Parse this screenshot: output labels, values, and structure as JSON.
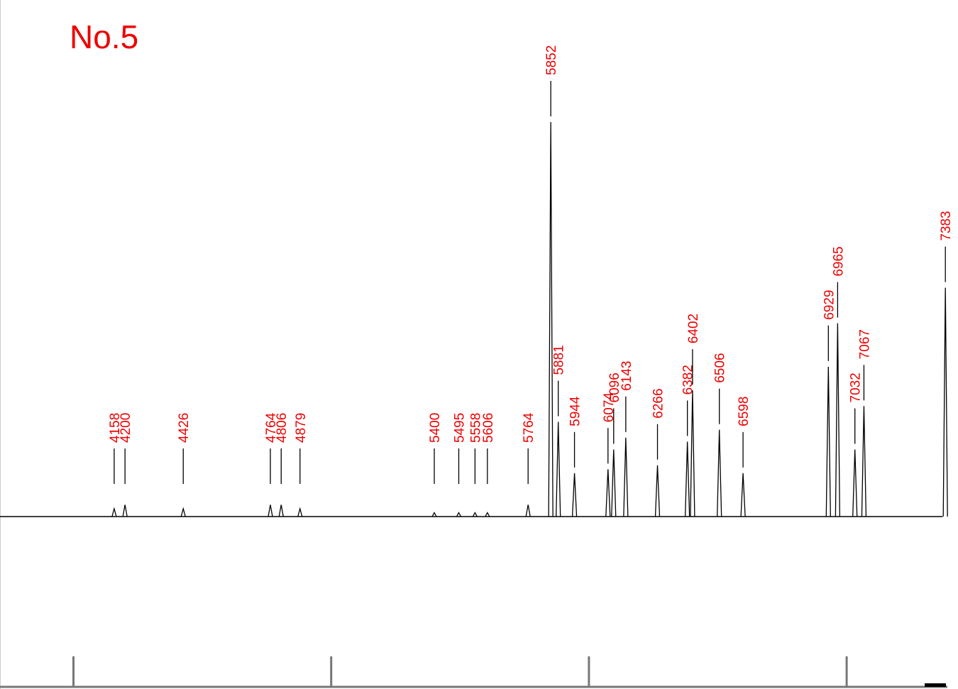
{
  "chart_data": {
    "type": "spectrum",
    "title": "No.5",
    "x": [
      4158,
      4200,
      4426,
      4764,
      4806,
      4879,
      5400,
      5495,
      5558,
      5606,
      5764,
      5852,
      5881,
      5944,
      6074,
      6096,
      6143,
      6266,
      6382,
      6402,
      6506,
      6598,
      6929,
      6965,
      7032,
      7067,
      7383
    ],
    "values": [
      2,
      3,
      2,
      3,
      3,
      2,
      1,
      1,
      1,
      1,
      3,
      100,
      24,
      11,
      12,
      17,
      20,
      13,
      19,
      32,
      22,
      11,
      38,
      49,
      17,
      28,
      58
    ],
    "xlim": [
      3715,
      7432
    ],
    "ylim": [
      0,
      100
    ],
    "xticks": [
      4000,
      5000,
      6000,
      7000
    ],
    "color": "#000000",
    "label_color": "#ee0000"
  }
}
